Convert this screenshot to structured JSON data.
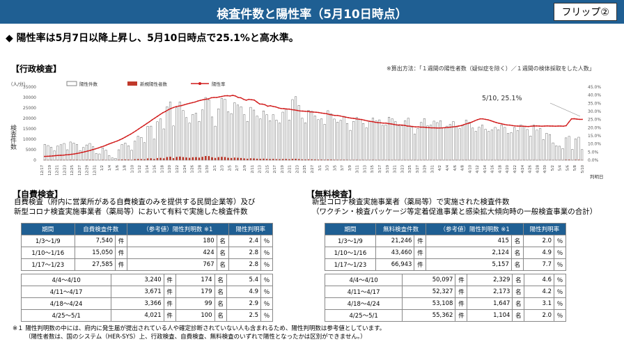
{
  "header": {
    "title": "検査件数と陽性率（5月10日時点）",
    "flip": "フリップ②"
  },
  "headline": "◆ 陽性率は5月7日以降上昇し、5月10日時点で25.1%と高水準。",
  "admin_section": {
    "label": "【行政検査】",
    "note": "※算出方法：「１週間の陽性者数（疑似症を除く）／１週間の検体採取をした人数」"
  },
  "chart_data": {
    "type": "bar",
    "y_unit_label": "（人/分）",
    "ylabel": "検査件数",
    "xlabel_right": "判明日",
    "ylim": [
      0,
      35000
    ],
    "y_ticks": [
      "0",
      "5000",
      "10000",
      "15000",
      "20000",
      "25000",
      "30000",
      "35000"
    ],
    "y2lim": [
      0,
      45
    ],
    "y2_ticks": [
      "0.0%",
      "5.0%",
      "10.0%",
      "15.0%",
      "20.0%",
      "25.0%",
      "30.0%",
      "35.0%",
      "40.0%",
      "45.0%"
    ],
    "legend": [
      "陽性件数",
      "新規陽性者数",
      "陽性率"
    ],
    "annotation": "5/10, 25.1%",
    "x_labels": [
      "12/17",
      "12/19",
      "12/21",
      "12/23",
      "12/25",
      "12/27",
      "12/29",
      "12/31",
      "1/2",
      "1/4",
      "1/6",
      "1/8",
      "1/10",
      "1/12",
      "1/14",
      "1/16",
      "1/18",
      "1/20",
      "1/22",
      "1/24",
      "1/26",
      "1/28",
      "1/30",
      "2/1",
      "2/3",
      "2/5",
      "2/7",
      "2/9",
      "2/11",
      "2/13",
      "2/15",
      "2/17",
      "2/19",
      "2/21",
      "2/23",
      "2/25",
      "2/27",
      "3/1",
      "3/3",
      "3/5",
      "3/7",
      "3/9",
      "3/11",
      "3/13",
      "3/15",
      "3/17",
      "3/19",
      "3/21",
      "3/23",
      "3/25",
      "3/27",
      "3/29",
      "3/31",
      "4/2",
      "4/4",
      "4/6",
      "4/8",
      "4/10",
      "4/12",
      "4/14",
      "4/16",
      "4/18",
      "4/20",
      "4/22",
      "4/24",
      "4/26",
      "4/28",
      "4/30",
      "5/2",
      "5/4",
      "5/6",
      "5/8",
      "5/10"
    ],
    "tests": [
      7600,
      7000,
      6200,
      4500,
      6800,
      7400,
      8000,
      5000,
      8700,
      8200,
      7500,
      4600,
      6100,
      7300,
      8000,
      6500,
      3200,
      3000,
      5900,
      4800,
      2200,
      1100,
      900,
      5000,
      7500,
      8200,
      6900,
      4800,
      9100,
      11500,
      10900,
      8400,
      16200,
      16300,
      10100,
      18400,
      19800,
      15000,
      25600,
      27900,
      16400,
      25100,
      27900,
      23800,
      20400,
      17800,
      21900,
      22500,
      18600,
      24100,
      30000,
      28900,
      20700,
      16300,
      24600,
      29600,
      29200,
      23200,
      22300,
      27500,
      26400,
      25600,
      21800,
      18600,
      25300,
      24000,
      21100,
      19800,
      23600,
      21800,
      18900,
      21800,
      19200,
      17800,
      23000,
      24600,
      19200,
      29000,
      30400,
      26200,
      20100,
      17900,
      23900,
      23400,
      21200,
      19400,
      19800,
      17200,
      23700,
      22200,
      19700,
      18200,
      19100,
      21000,
      17600,
      14300,
      18600,
      20500,
      19400,
      17600,
      15500,
      18500,
      20200,
      18800,
      19300,
      16700,
      16900,
      20600,
      19800,
      18500,
      16500,
      16500,
      18900,
      20100,
      15800,
      12500,
      15200,
      18100,
      19900,
      16500,
      16800,
      18700,
      18000,
      18900,
      15500,
      16300,
      17100,
      18500,
      16000,
      15100,
      16500,
      19200,
      18200,
      15400,
      13800,
      15800,
      16800,
      14800,
      13800,
      14500,
      15700,
      14600,
      16900,
      15700,
      12800,
      13200,
      15700,
      14200,
      16900,
      16200,
      14700,
      11600,
      16800,
      14400,
      15200,
      9900,
      12900,
      12300,
      8300,
      6900,
      6700,
      5600,
      10700,
      11400,
      5200,
      10200,
      11000,
      5100
    ],
    "new_positives": [
      200,
      180,
      150,
      100,
      170,
      190,
      210,
      130,
      240,
      220,
      200,
      120,
      180,
      220,
      250,
      210,
      100,
      90,
      200,
      170,
      80,
      40,
      40,
      220,
      350,
      380,
      320,
      220,
      450,
      560,
      540,
      420,
      850,
      880,
      550,
      1020,
      1120,
      900,
      1500,
      1650,
      1000,
      1560,
      1720,
      1480,
      1300,
      1150,
      1400,
      1450,
      1250,
      1600,
      2000,
      1950,
      1400,
      1080,
      1450,
      1600,
      1500,
      1150,
      1050,
      1250,
      1150,
      1050,
      850,
      700,
      900,
      830,
      700,
      650,
      720,
      640,
      540,
      600,
      520,
      460,
      560,
      580,
      450,
      660,
      660,
      540,
      400,
      340,
      430,
      410,
      350,
      310,
      300,
      250,
      330,
      300,
      250,
      220,
      220,
      240,
      190,
      150,
      190,
      200,
      190,
      170,
      150,
      170,
      180,
      160,
      160,
      140,
      140,
      160,
      150,
      140,
      120,
      120,
      130,
      140,
      110,
      90,
      100,
      120,
      130,
      110,
      110,
      120,
      110,
      120,
      100,
      100,
      110,
      110,
      100,
      90,
      100,
      110,
      100,
      90,
      80,
      90,
      90,
      80,
      70,
      80,
      80,
      80,
      90,
      80,
      70,
      70,
      80,
      80,
      90,
      90,
      80,
      60,
      90,
      80,
      90,
      70,
      100,
      110,
      90,
      90,
      100,
      120,
      250,
      280,
      130,
      250,
      270,
      130
    ],
    "positive_rate": [
      2.3,
      2.4,
      2.5,
      2.6,
      2.8,
      2.9,
      3.0,
      3.1,
      3.3,
      3.4,
      3.6,
      3.8,
      4.1,
      4.4,
      4.8,
      5.2,
      5.6,
      6.0,
      6.5,
      7.0,
      7.5,
      8.1,
      8.6,
      9.3,
      10.0,
      10.6,
      11.2,
      11.8,
      12.5,
      13.3,
      14.2,
      15.1,
      16.0,
      17.0,
      18.1,
      19.2,
      20.3,
      21.4,
      22.5,
      23.6,
      24.8,
      25.9,
      27.0,
      28.1,
      29.2,
      30.0,
      31.0,
      31.8,
      32.4,
      33.0,
      33.3,
      33.6,
      34.1,
      34.6,
      35.0,
      35.4,
      35.8,
      36.4,
      36.8,
      37.2,
      37.5,
      37.7,
      38.4,
      38.6,
      38.6,
      38.9,
      39.2,
      39.6,
      39.7,
      39.5,
      39.9,
      39.5,
      38.6,
      38.4,
      37.5,
      36.9,
      37.4,
      37.2,
      37.0,
      35.8,
      34.6,
      34.5,
      34.1,
      33.2,
      33.5,
      33.1,
      32.8,
      32.2,
      31.8,
      31.7,
      31.5,
      31.4,
      31.1,
      30.9,
      30.6,
      30.3,
      30.2,
      30.1,
      30.0,
      29.7,
      29.6,
      29.5,
      29.3,
      29.0,
      28.8,
      28.6,
      28.1,
      27.8,
      27.5,
      27.5,
      27.2,
      26.8,
      26.5,
      26.2,
      25.9,
      25.7,
      25.4,
      25.2,
      25.0,
      24.6,
      24.2,
      23.9,
      23.7,
      23.3,
      23.1,
      23.0,
      22.8,
      22.8,
      22.5,
      22.3,
      22.0,
      21.7,
      21.7,
      21.6,
      21.4,
      21.0,
      20.9,
      20.7,
      20.5,
      20.5,
      20.3,
      20.3,
      20.1,
      20.0,
      19.9,
      19.9,
      19.8,
      19.8,
      19.9,
      20.0,
      20.1,
      20.3,
      20.5,
      20.7,
      21.0,
      21.3,
      21.9,
      22.4,
      22.8,
      23.5,
      24.2,
      24.9,
      25.4,
      25.4,
      25.1,
      24.8,
      24.3,
      23.7,
      23.2,
      22.7,
      22.4,
      22.0,
      21.7,
      21.6,
      21.3,
      21.1,
      21.0,
      20.9,
      20.9,
      20.8,
      20.7,
      20.9,
      21.0,
      21.1,
      21.0,
      20.9,
      21.0,
      21.1,
      21.0,
      21.0,
      20.9,
      21.0,
      21.0,
      20.9,
      21.2,
      23.4,
      25.4,
      25.5,
      25.3,
      25.1,
      25.1
    ]
  },
  "self_section": {
    "label": "【自費検査】",
    "desc1": "自費検査（府内に営業所がある自費検査のみを提供する民間企業等）及び",
    "desc2": "新型コロナ検査実施事業者（薬局等）において有料で実施した検査件数",
    "headers": [
      "期間",
      "自費検査件数",
      "（参考値）陽性判明数 ※1",
      "陽性判明率"
    ],
    "rows1": [
      [
        "1/3～1/9",
        "7,540",
        "件",
        "180",
        "名",
        "2.4",
        "％"
      ],
      [
        "1/10～1/16",
        "15,050",
        "件",
        "424",
        "名",
        "2.8",
        "％"
      ],
      [
        "1/17～1/23",
        "27,585",
        "件",
        "767",
        "名",
        "2.8",
        "％"
      ]
    ],
    "rows2": [
      [
        "4/4～4/10",
        "3,240",
        "件",
        "174",
        "名",
        "5.4",
        "％"
      ],
      [
        "4/11～4/17",
        "3,671",
        "件",
        "179",
        "名",
        "4.9",
        "％"
      ],
      [
        "4/18～4/24",
        "3,366",
        "件",
        "99",
        "名",
        "2.9",
        "％"
      ],
      [
        "4/25～5/1",
        "4,021",
        "件",
        "100",
        "名",
        "2.5",
        "％"
      ]
    ]
  },
  "free_section": {
    "label": "【無料検査】",
    "desc1": "新型コロナ検査実施事業者（薬局等）で実施された検査件数",
    "desc2": "（ワクチン・検査パッケージ等定着促進事業と感染拡大傾向時の一般検査事業の合計）",
    "headers": [
      "期間",
      "無料検査件数",
      "（参考値）陽性判明数 ※1",
      "陽性判明率"
    ],
    "rows1": [
      [
        "1/3～1/9",
        "21,246",
        "件",
        "415",
        "名",
        "2.0",
        "％"
      ],
      [
        "1/10～1/16",
        "43,460",
        "件",
        "2,124",
        "名",
        "4.9",
        "％"
      ],
      [
        "1/17～1/23",
        "66,943",
        "件",
        "5,157",
        "名",
        "7.7",
        "％"
      ]
    ],
    "rows2": [
      [
        "4/4～4/10",
        "50,097",
        "件",
        "2,329",
        "名",
        "4.6",
        "％"
      ],
      [
        "4/11～4/17",
        "52,327",
        "件",
        "2,173",
        "名",
        "4.2",
        "％"
      ],
      [
        "4/18～4/24",
        "53,108",
        "件",
        "1,647",
        "名",
        "3.1",
        "％"
      ],
      [
        "4/25～5/1",
        "55,362",
        "件",
        "1,104",
        "名",
        "2.0",
        "％"
      ]
    ]
  },
  "footer": {
    "line1": "※１ 陽性判明数の中には、府内に発生届が提出されている人や確定診断されていない人も含まれるため、陽性判明数は参考値としています。",
    "line2": "（陽性者数は、国のシステム（HER-SYS）上、行政検査、自費検査、無料検査のいずれで陽性となったかは区別ができません。）"
  },
  "colors": {
    "header": "#1f5f93",
    "table_header": "#1f5f93",
    "bar_tests": "#ffffff",
    "bar_positive": "#c0392b",
    "line_rate": "#d11a1a"
  }
}
